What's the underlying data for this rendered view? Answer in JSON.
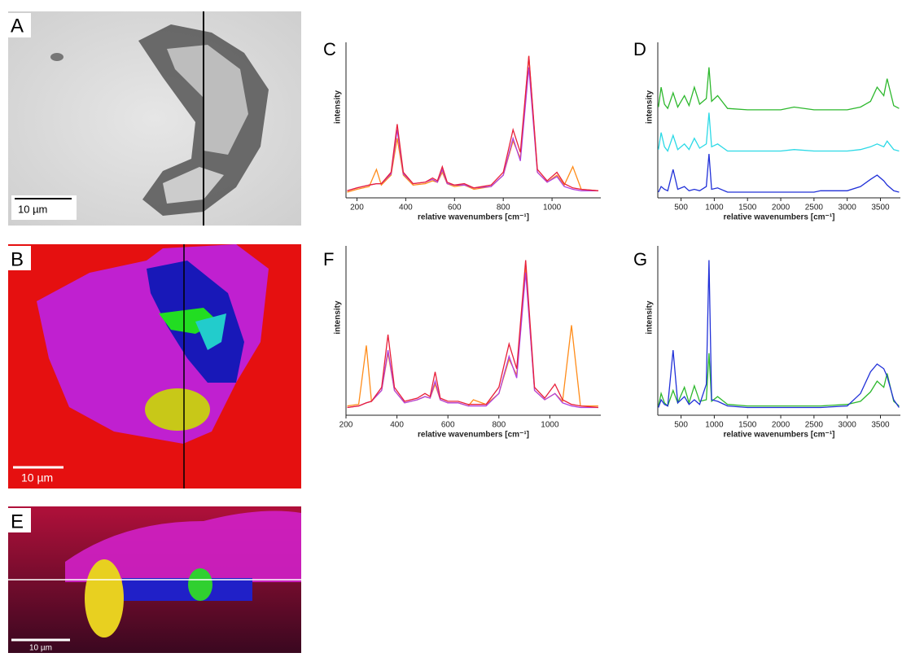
{
  "panels": [
    {
      "label": "A",
      "scale_bar": "10 µm"
    },
    {
      "label": "B",
      "scale_bar": "10 µm"
    },
    {
      "label": "E",
      "scale_bar": "10 µm"
    }
  ],
  "chart_data": [
    {
      "type": "line",
      "panel": "C",
      "xlabel": "relative wavenumbers [cm⁻¹]",
      "ylabel": "intensity",
      "xlim": [
        155,
        1200
      ],
      "xticks": [
        200,
        400,
        600,
        800,
        1000
      ],
      "ylim": [
        0,
        105
      ],
      "x": [
        160,
        200,
        250,
        280,
        300,
        340,
        365,
        390,
        430,
        480,
        510,
        530,
        550,
        570,
        600,
        640,
        680,
        750,
        800,
        840,
        870,
        905,
        940,
        980,
        1020,
        1050,
        1085,
        1120,
        1190
      ],
      "series": [
        {
          "color": "#ff8c1a",
          "values": [
            4,
            6,
            8,
            20,
            9,
            16,
            42,
            16,
            9,
            10,
            12,
            11,
            18,
            10,
            8,
            9,
            6,
            8,
            16,
            40,
            28,
            100,
            18,
            11,
            16,
            9,
            22,
            6,
            5
          ]
        },
        {
          "color": "#b040e0",
          "values": [
            5,
            7,
            9,
            10,
            10,
            17,
            48,
            17,
            10,
            11,
            13,
            11,
            20,
            10,
            9,
            9,
            7,
            8,
            16,
            42,
            26,
            92,
            18,
            11,
            15,
            8,
            6,
            5,
            5
          ]
        },
        {
          "color": "#e8203a",
          "values": [
            5,
            7,
            9,
            10,
            10,
            18,
            52,
            18,
            10,
            11,
            14,
            12,
            22,
            11,
            9,
            10,
            7,
            9,
            18,
            48,
            32,
            100,
            20,
            12,
            18,
            10,
            7,
            6,
            5
          ]
        }
      ]
    },
    {
      "type": "line",
      "panel": "D",
      "xlabel": "relative wavenumbers [cm⁻¹]",
      "ylabel": "intensity",
      "xlim": [
        150,
        3800
      ],
      "xticks": [
        500,
        1000,
        1500,
        2000,
        2500,
        3000,
        3500
      ],
      "ylim": [
        0,
        105
      ],
      "x": [
        160,
        200,
        250,
        300,
        380,
        450,
        550,
        620,
        700,
        780,
        880,
        920,
        960,
        1050,
        1200,
        1500,
        2000,
        2200,
        2500,
        2600,
        3000,
        3200,
        3350,
        3450,
        3550,
        3600,
        3700,
        3780
      ],
      "series": [
        {
          "color": "#2db82d",
          "values": [
            64,
            78,
            66,
            63,
            74,
            64,
            72,
            65,
            78,
            66,
            70,
            92,
            68,
            72,
            63,
            62,
            62,
            64,
            62,
            62,
            62,
            64,
            68,
            78,
            72,
            84,
            65,
            63
          ]
        },
        {
          "color": "#2bd9e6",
          "values": [
            34,
            46,
            36,
            33,
            44,
            34,
            38,
            34,
            42,
            35,
            38,
            60,
            36,
            38,
            33,
            33,
            33,
            34,
            33,
            33,
            33,
            34,
            36,
            38,
            36,
            40,
            34,
            33
          ]
        },
        {
          "color": "#2030d8",
          "values": [
            4,
            8,
            6,
            5,
            20,
            6,
            8,
            5,
            6,
            5,
            8,
            31,
            6,
            7,
            4,
            4,
            4,
            4,
            4,
            5,
            5,
            8,
            13,
            16,
            12,
            9,
            5,
            4
          ]
        }
      ]
    },
    {
      "type": "line",
      "panel": "F",
      "xlabel": "relative wavenumbers [cm⁻¹]",
      "ylabel": "intensity",
      "xlim": [
        200,
        1200
      ],
      "xticks": [
        200,
        400,
        600,
        800,
        1000
      ],
      "ylim": [
        0,
        105
      ],
      "x": [
        205,
        250,
        280,
        300,
        340,
        365,
        390,
        430,
        480,
        510,
        530,
        550,
        570,
        600,
        640,
        680,
        700,
        750,
        800,
        840,
        870,
        905,
        940,
        980,
        1020,
        1050,
        1085,
        1120,
        1190
      ],
      "series": [
        {
          "color": "#ff8c1a",
          "values": [
            6,
            7,
            45,
            9,
            16,
            40,
            16,
            8,
            10,
            12,
            11,
            20,
            10,
            8,
            8,
            6,
            10,
            7,
            14,
            36,
            26,
            95,
            16,
            10,
            14,
            9,
            58,
            6,
            6
          ]
        },
        {
          "color": "#b040e0",
          "values": [
            5,
            6,
            8,
            9,
            16,
            42,
            16,
            8,
            10,
            12,
            11,
            22,
            10,
            8,
            8,
            6,
            6,
            6,
            14,
            38,
            24,
            92,
            16,
            10,
            14,
            8,
            6,
            5,
            5
          ]
        },
        {
          "color": "#e8203a",
          "values": [
            5,
            6,
            8,
            9,
            18,
            52,
            18,
            9,
            11,
            14,
            12,
            28,
            11,
            9,
            9,
            7,
            7,
            7,
            18,
            46,
            30,
            100,
            18,
            11,
            20,
            10,
            7,
            6,
            5
          ]
        }
      ]
    },
    {
      "type": "line",
      "panel": "G",
      "xlabel": "relative wavenumbers [cm⁻¹]",
      "ylabel": "intensity",
      "xlim": [
        150,
        3800
      ],
      "xticks": [
        500,
        1000,
        1500,
        2000,
        2500,
        3000,
        3500
      ],
      "ylim": [
        0,
        105
      ],
      "x": [
        160,
        200,
        250,
        300,
        380,
        450,
        550,
        620,
        700,
        780,
        880,
        920,
        960,
        1050,
        1200,
        1500,
        2000,
        2200,
        2500,
        2600,
        3000,
        3200,
        3350,
        3450,
        3550,
        3600,
        3700,
        3780
      ],
      "series": [
        {
          "color": "#2db82d",
          "values": [
            6,
            14,
            8,
            6,
            16,
            8,
            18,
            8,
            19,
            9,
            10,
            40,
            9,
            12,
            7,
            6,
            6,
            6,
            6,
            6,
            7,
            9,
            15,
            22,
            18,
            27,
            9,
            6
          ]
        },
        {
          "color": "#2030d8",
          "values": [
            5,
            10,
            7,
            6,
            42,
            8,
            12,
            7,
            10,
            7,
            20,
            100,
            10,
            9,
            6,
            5,
            5,
            5,
            5,
            5,
            6,
            14,
            28,
            33,
            30,
            25,
            10,
            5
          ]
        }
      ]
    }
  ]
}
